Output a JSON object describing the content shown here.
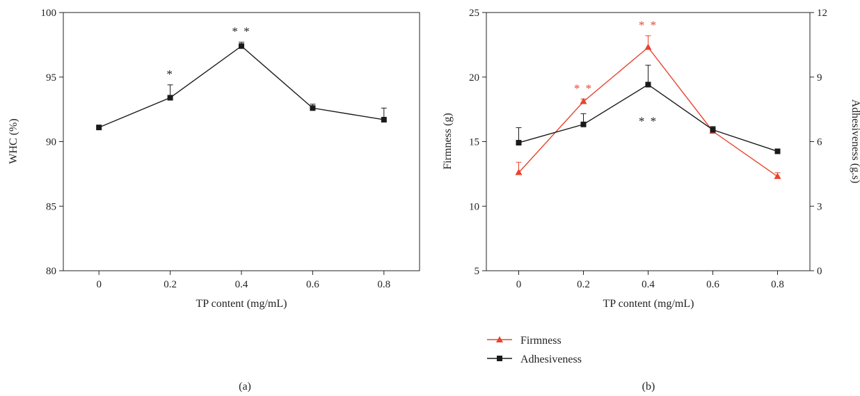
{
  "colors": {
    "black": "#1a1a1a",
    "red": "#e8432d"
  },
  "chart_data": [
    {
      "type": "line",
      "panel_label": "(a)",
      "xlabel": "TP content (mg/mL)",
      "ylabel": "WHC (%)",
      "xlim": [
        -0.1,
        0.9
      ],
      "ylim": [
        80,
        100
      ],
      "xticks": [
        "0",
        "0.2",
        "0.4",
        "0.6",
        "0.8"
      ],
      "yticks": [
        "80",
        "85",
        "90",
        "95",
        "100"
      ],
      "series": [
        {
          "name": "",
          "color": "#1a1a1a",
          "marker": "square",
          "x": [
            0,
            0.2,
            0.4,
            0.6,
            0.8
          ],
          "y": [
            91.1,
            93.4,
            97.4,
            92.6,
            91.7
          ],
          "err": [
            0,
            1.0,
            0.3,
            0.3,
            0.9
          ],
          "sig": [
            "",
            "*",
            "* *",
            "",
            ""
          ]
        }
      ]
    },
    {
      "type": "line",
      "panel_label": "(b)",
      "xlabel": "TP content (mg/mL)",
      "ylabel": "Firmness (g)",
      "y2label": "Adhesiveness (g.s)",
      "xlim": [
        -0.1,
        0.9
      ],
      "ylim": [
        5,
        25
      ],
      "y2lim": [
        0,
        12
      ],
      "xticks": [
        "0",
        "0.2",
        "0.4",
        "0.6",
        "0.8"
      ],
      "yticks": [
        "5",
        "10",
        "15",
        "20",
        "25"
      ],
      "y2ticks": [
        "0",
        "3",
        "6",
        "9",
        "12"
      ],
      "legend_position": "bottom-left",
      "series": [
        {
          "name": "Firmness",
          "color": "#e8432d",
          "marker": "triangle",
          "axis": "left",
          "x": [
            0,
            0.2,
            0.4,
            0.6,
            0.8
          ],
          "y": [
            12.6,
            18.1,
            22.3,
            15.8,
            12.3
          ],
          "err": [
            0.8,
            0.2,
            0.9,
            0.2,
            0.3
          ],
          "sig": [
            "",
            "* *",
            "* *",
            "",
            ""
          ]
        },
        {
          "name": "Adhesiveness",
          "color": "#1a1a1a",
          "marker": "square",
          "axis": "right",
          "x": [
            0,
            0.2,
            0.4,
            0.6,
            0.8
          ],
          "y": [
            5.95,
            6.8,
            8.65,
            6.55,
            5.55
          ],
          "err": [
            0.7,
            0.5,
            0.9,
            0.15,
            0.1
          ],
          "sig": [
            "",
            "",
            "* *",
            "",
            ""
          ]
        }
      ]
    }
  ]
}
